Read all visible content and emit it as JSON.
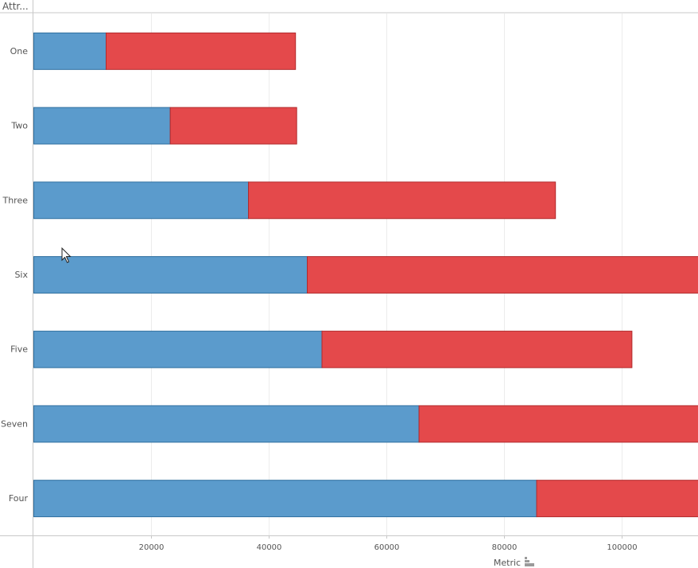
{
  "header": {
    "label": "Attr..."
  },
  "sort_icon": "sort-bars-icon",
  "cursor_icon": "mouse-pointer-icon",
  "colors": {
    "series_a": "#5b9bcc",
    "series_b": "#e4494b",
    "series_a_stroke": "#2f6f9f",
    "series_b_stroke": "#b12a2c"
  },
  "chart_data": {
    "type": "bar",
    "orientation": "horizontal",
    "stacked": true,
    "categories": [
      "One",
      "Two",
      "Three",
      "Six",
      "Five",
      "Seven",
      "Four"
    ],
    "series": [
      {
        "values": [
          12300,
          23200,
          36500,
          46500,
          49000,
          65500,
          85500
        ]
      },
      {
        "values": [
          32200,
          21500,
          52200,
          68000,
          52700,
          50000,
          35000
        ]
      }
    ],
    "xlabel": "Metric",
    "xlim": [
      0,
      113000
    ],
    "xticks": [
      20000,
      40000,
      60000,
      80000,
      100000
    ],
    "grid": true
  }
}
